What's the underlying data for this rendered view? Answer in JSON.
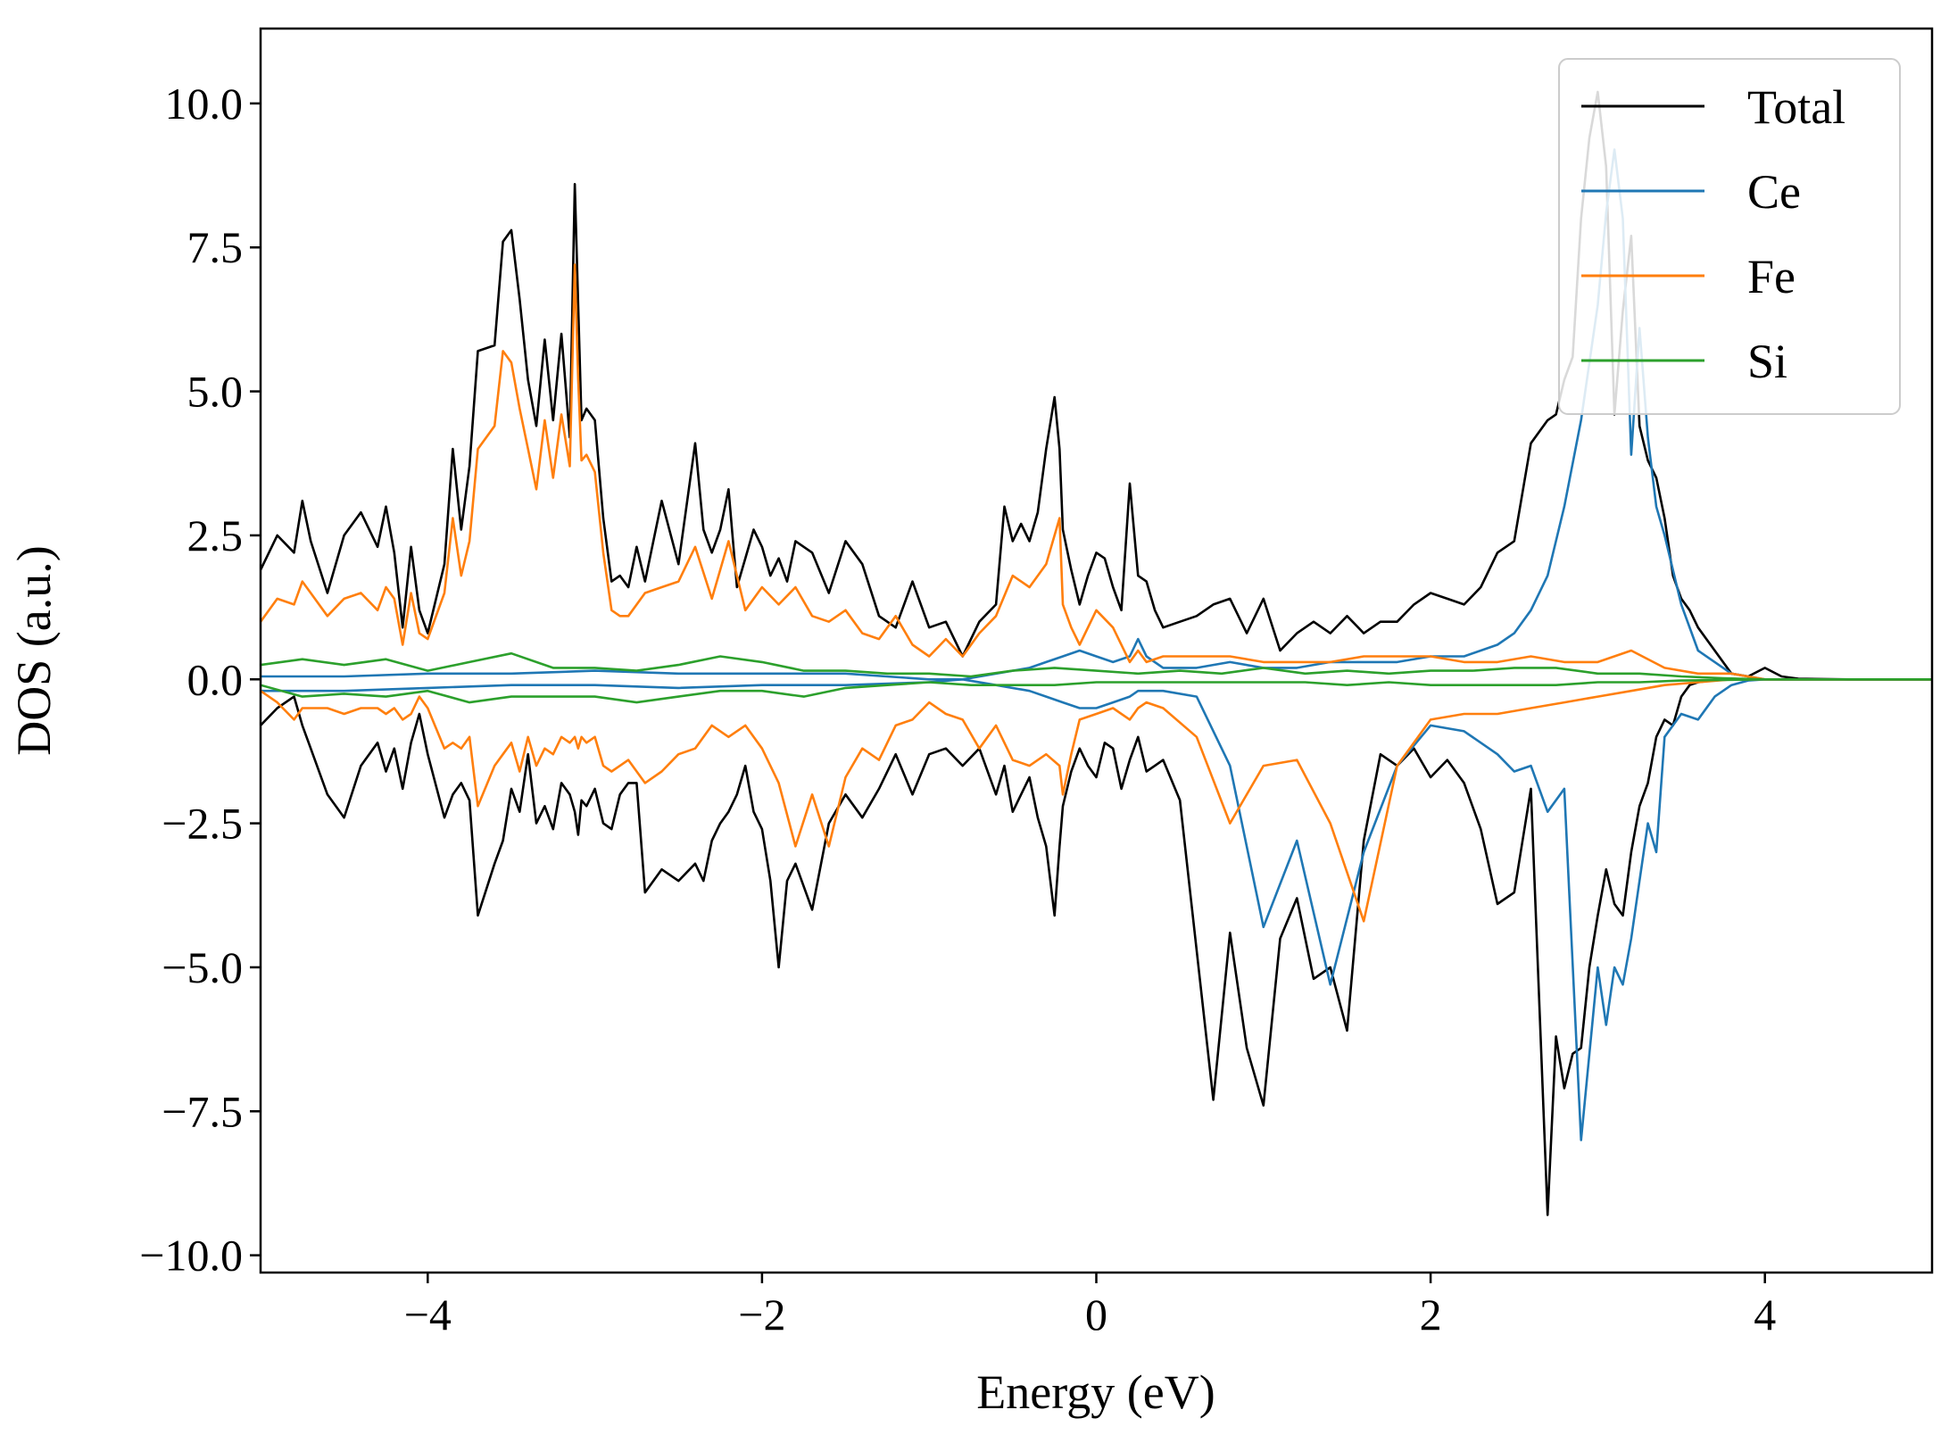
{
  "chart_data": {
    "type": "line",
    "title": "",
    "xlabel": "Energy (eV)",
    "ylabel": "DOS (a.u.)",
    "xlim": [
      -5,
      5
    ],
    "ylim": [
      -10.3,
      11.3
    ],
    "xticks": [
      -4,
      -2,
      0,
      2,
      4
    ],
    "xtick_labels": [
      "−4",
      "−2",
      "0",
      "2",
      "4"
    ],
    "yticks": [
      -10,
      -7.5,
      -5,
      -2.5,
      0,
      2.5,
      5,
      7.5,
      10
    ],
    "ytick_labels": [
      "−10.0",
      "−7.5",
      "−5.0",
      "−2.5",
      "0.0",
      "2.5",
      "5.0",
      "7.5",
      "10.0"
    ],
    "grid": false,
    "legend_position": "top-right",
    "series": [
      {
        "name": "Total",
        "color": "#000000",
        "spin_up": {
          "x": [
            -5.0,
            -4.9,
            -4.8,
            -4.75,
            -4.7,
            -4.6,
            -4.5,
            -4.4,
            -4.3,
            -4.25,
            -4.2,
            -4.15,
            -4.1,
            -4.05,
            -4.0,
            -3.9,
            -3.85,
            -3.8,
            -3.75,
            -3.7,
            -3.6,
            -3.55,
            -3.5,
            -3.45,
            -3.4,
            -3.35,
            -3.3,
            -3.25,
            -3.2,
            -3.15,
            -3.12,
            -3.1,
            -3.08,
            -3.05,
            -3.0,
            -2.95,
            -2.9,
            -2.85,
            -2.8,
            -2.75,
            -2.7,
            -2.6,
            -2.5,
            -2.4,
            -2.35,
            -2.3,
            -2.25,
            -2.2,
            -2.15,
            -2.1,
            -2.05,
            -2.0,
            -1.95,
            -1.9,
            -1.85,
            -1.8,
            -1.7,
            -1.6,
            -1.5,
            -1.4,
            -1.3,
            -1.2,
            -1.1,
            -1.0,
            -0.9,
            -0.8,
            -0.7,
            -0.6,
            -0.55,
            -0.5,
            -0.45,
            -0.4,
            -0.35,
            -0.3,
            -0.25,
            -0.22,
            -0.2,
            -0.15,
            -0.1,
            -0.05,
            0.0,
            0.05,
            0.1,
            0.15,
            0.2,
            0.25,
            0.3,
            0.35,
            0.4,
            0.5,
            0.6,
            0.7,
            0.8,
            0.9,
            1.0,
            1.1,
            1.2,
            1.3,
            1.4,
            1.5,
            1.6,
            1.7,
            1.8,
            1.9,
            2.0,
            2.1,
            2.2,
            2.3,
            2.4,
            2.5,
            2.6,
            2.7,
            2.75,
            2.8,
            2.85,
            2.9,
            2.95,
            3.0,
            3.05,
            3.1,
            3.15,
            3.2,
            3.25,
            3.3,
            3.35,
            3.4,
            3.45,
            3.5,
            3.55,
            3.6,
            3.7,
            3.8,
            3.9,
            4.0,
            4.1,
            4.2,
            4.5,
            5.0
          ],
          "y": [
            1.9,
            2.5,
            2.2,
            3.1,
            2.4,
            1.5,
            2.5,
            2.9,
            2.3,
            3.0,
            2.2,
            0.9,
            2.3,
            1.2,
            0.8,
            2.0,
            4.0,
            2.6,
            3.7,
            5.7,
            5.8,
            7.6,
            7.8,
            6.6,
            5.2,
            4.4,
            5.9,
            4.5,
            6.0,
            4.2,
            8.6,
            6.5,
            4.5,
            4.7,
            4.5,
            2.8,
            1.7,
            1.8,
            1.6,
            2.3,
            1.7,
            3.1,
            2.0,
            4.1,
            2.6,
            2.2,
            2.6,
            3.3,
            1.6,
            2.1,
            2.6,
            2.3,
            1.8,
            2.1,
            1.7,
            2.4,
            2.2,
            1.5,
            2.4,
            2.0,
            1.1,
            0.9,
            1.7,
            0.9,
            1.0,
            0.4,
            1.0,
            1.3,
            3.0,
            2.4,
            2.7,
            2.4,
            2.9,
            4.0,
            4.9,
            4.0,
            2.6,
            1.9,
            1.3,
            1.8,
            2.2,
            2.1,
            1.6,
            1.2,
            3.4,
            1.8,
            1.7,
            1.2,
            0.9,
            1.0,
            1.1,
            1.3,
            1.4,
            0.8,
            1.4,
            0.5,
            0.8,
            1.0,
            0.8,
            1.1,
            0.8,
            1.0,
            1.0,
            1.3,
            1.5,
            1.4,
            1.3,
            1.6,
            2.2,
            2.4,
            4.1,
            4.5,
            4.6,
            5.2,
            5.6,
            8.0,
            9.4,
            10.2,
            8.9,
            4.6,
            6.4,
            7.7,
            4.4,
            3.8,
            3.5,
            2.8,
            1.8,
            1.4,
            1.2,
            0.9,
            0.5,
            0.1,
            0.05,
            0.2,
            0.05,
            0.01,
            0.0,
            0.0
          ],
          "y_down": [
            -0.8,
            -0.5,
            -0.3,
            -0.8,
            -1.2,
            -2.0,
            -2.4,
            -1.5,
            -1.1,
            -1.6,
            -1.2,
            -1.9,
            -1.1,
            -0.6,
            -1.3,
            -2.4,
            -2.0,
            -1.8,
            -2.1,
            -4.1,
            -3.2,
            -2.8,
            -1.9,
            -2.3,
            -1.3,
            -2.5,
            -2.2,
            -2.6,
            -1.8,
            -2.0,
            -2.3,
            -2.7,
            -2.1,
            -2.2,
            -1.9,
            -2.5,
            -2.6,
            -2.0,
            -1.8,
            -1.8,
            -3.7,
            -3.3,
            -3.5,
            -3.2,
            -3.5,
            -2.8,
            -2.5,
            -2.3,
            -2.0,
            -1.5,
            -2.3,
            -2.6,
            -3.5,
            -5.0,
            -3.5,
            -3.2,
            -4.0,
            -2.5,
            -2.0,
            -2.4,
            -1.9,
            -1.3,
            -2.0,
            -1.3,
            -1.2,
            -1.5,
            -1.2,
            -2.0,
            -1.5,
            -2.3,
            -2.0,
            -1.7,
            -2.4,
            -2.9,
            -4.1,
            -2.9,
            -2.2,
            -1.6,
            -1.2,
            -1.5,
            -1.7,
            -1.1,
            -1.2,
            -1.9,
            -1.4,
            -1.0,
            -1.6,
            -1.5,
            -1.4,
            -2.1,
            -4.7,
            -7.3,
            -4.4,
            -6.4,
            -7.4,
            -4.5,
            -3.8,
            -5.2,
            -5.0,
            -6.1,
            -2.8,
            -1.3,
            -1.5,
            -1.2,
            -1.7,
            -1.4,
            -1.8,
            -2.6,
            -3.9,
            -3.7,
            -1.9,
            -9.3,
            -6.2,
            -7.1,
            -6.5,
            -6.4,
            -5.0,
            -4.1,
            -3.3,
            -3.9,
            -4.1,
            -3.0,
            -2.2,
            -1.8,
            -1.0,
            -0.7,
            -0.8,
            -0.3,
            -0.1,
            -0.05,
            -0.01,
            0.0,
            0.0,
            0.0,
            0.0,
            0.0,
            0.0,
            0.0
          ]
        }
      },
      {
        "name": "Ce",
        "color": "#1f77b4",
        "spin_up": {
          "x": [
            -5.0,
            -4.5,
            -4.0,
            -3.5,
            -3.0,
            -2.5,
            -2.0,
            -1.5,
            -1.0,
            -0.8,
            -0.6,
            -0.4,
            -0.3,
            -0.2,
            -0.1,
            0.0,
            0.1,
            0.2,
            0.25,
            0.3,
            0.4,
            0.6,
            0.8,
            1.0,
            1.2,
            1.4,
            1.6,
            1.8,
            2.0,
            2.2,
            2.4,
            2.5,
            2.6,
            2.7,
            2.8,
            2.9,
            3.0,
            3.05,
            3.1,
            3.15,
            3.2,
            3.25,
            3.3,
            3.35,
            3.4,
            3.5,
            3.6,
            3.7,
            3.8,
            3.9,
            4.0,
            4.5,
            5.0
          ],
          "y": [
            0.05,
            0.05,
            0.1,
            0.1,
            0.15,
            0.1,
            0.1,
            0.1,
            0.0,
            0.0,
            0.1,
            0.2,
            0.3,
            0.4,
            0.5,
            0.4,
            0.3,
            0.4,
            0.7,
            0.4,
            0.2,
            0.2,
            0.3,
            0.2,
            0.2,
            0.3,
            0.3,
            0.3,
            0.4,
            0.4,
            0.6,
            0.8,
            1.2,
            1.8,
            3.0,
            4.5,
            6.5,
            8.1,
            9.2,
            8.0,
            3.9,
            6.1,
            4.2,
            3.0,
            2.5,
            1.3,
            0.5,
            0.3,
            0.1,
            0.05,
            0.0,
            0.0,
            0.0
          ],
          "y_down": [
            -0.2,
            -0.2,
            -0.15,
            -0.1,
            -0.1,
            -0.15,
            -0.1,
            -0.1,
            -0.05,
            0.0,
            -0.1,
            -0.2,
            -0.3,
            -0.4,
            -0.5,
            -0.5,
            -0.4,
            -0.3,
            -0.2,
            -0.2,
            -0.2,
            -0.3,
            -1.5,
            -4.3,
            -2.8,
            -5.3,
            -3.0,
            -1.5,
            -0.8,
            -0.9,
            -1.3,
            -1.6,
            -1.5,
            -2.3,
            -1.9,
            -8.0,
            -5.0,
            -6.0,
            -5.0,
            -5.3,
            -4.5,
            -3.5,
            -2.5,
            -3.0,
            -1.0,
            -0.6,
            -0.7,
            -0.3,
            -0.1,
            -0.02,
            0.0,
            0.0,
            0.0
          ]
        }
      },
      {
        "name": "Fe",
        "color": "#ff7f0e",
        "spin_up": {
          "x": [
            -5.0,
            -4.9,
            -4.8,
            -4.75,
            -4.7,
            -4.6,
            -4.5,
            -4.4,
            -4.3,
            -4.25,
            -4.2,
            -4.15,
            -4.1,
            -4.05,
            -4.0,
            -3.9,
            -3.85,
            -3.8,
            -3.75,
            -3.7,
            -3.6,
            -3.55,
            -3.5,
            -3.45,
            -3.4,
            -3.35,
            -3.3,
            -3.25,
            -3.2,
            -3.15,
            -3.12,
            -3.1,
            -3.08,
            -3.05,
            -3.0,
            -2.95,
            -2.9,
            -2.85,
            -2.8,
            -2.7,
            -2.6,
            -2.5,
            -2.4,
            -2.3,
            -2.2,
            -2.1,
            -2.0,
            -1.9,
            -1.8,
            -1.7,
            -1.6,
            -1.5,
            -1.4,
            -1.3,
            -1.2,
            -1.1,
            -1.0,
            -0.9,
            -0.8,
            -0.7,
            -0.6,
            -0.5,
            -0.4,
            -0.3,
            -0.22,
            -0.2,
            -0.15,
            -0.1,
            0.0,
            0.1,
            0.2,
            0.25,
            0.3,
            0.4,
            0.6,
            0.8,
            1.0,
            1.2,
            1.4,
            1.6,
            1.8,
            2.0,
            2.2,
            2.4,
            2.6,
            2.8,
            3.0,
            3.2,
            3.4,
            3.6,
            3.8,
            4.0,
            4.5,
            5.0
          ],
          "y": [
            1.0,
            1.4,
            1.3,
            1.7,
            1.5,
            1.1,
            1.4,
            1.5,
            1.2,
            1.6,
            1.4,
            0.6,
            1.5,
            0.8,
            0.7,
            1.5,
            2.8,
            1.8,
            2.4,
            4.0,
            4.4,
            5.7,
            5.5,
            4.7,
            4.0,
            3.3,
            4.5,
            3.5,
            4.6,
            3.7,
            7.2,
            5.2,
            3.8,
            3.9,
            3.6,
            2.2,
            1.2,
            1.1,
            1.1,
            1.5,
            1.6,
            1.7,
            2.3,
            1.4,
            2.4,
            1.2,
            1.6,
            1.3,
            1.6,
            1.1,
            1.0,
            1.2,
            0.8,
            0.7,
            1.1,
            0.6,
            0.4,
            0.7,
            0.4,
            0.8,
            1.1,
            1.8,
            1.6,
            2.0,
            2.8,
            1.3,
            0.9,
            0.6,
            1.2,
            0.9,
            0.3,
            0.5,
            0.3,
            0.4,
            0.4,
            0.4,
            0.3,
            0.3,
            0.3,
            0.4,
            0.4,
            0.4,
            0.3,
            0.3,
            0.4,
            0.3,
            0.3,
            0.5,
            0.2,
            0.1,
            0.1,
            0.0,
            0.0,
            0.0
          ],
          "y_down": [
            -0.2,
            -0.4,
            -0.7,
            -0.5,
            -0.5,
            -0.5,
            -0.6,
            -0.5,
            -0.5,
            -0.6,
            -0.5,
            -0.7,
            -0.6,
            -0.3,
            -0.5,
            -1.2,
            -1.1,
            -1.2,
            -1.0,
            -2.2,
            -1.5,
            -1.3,
            -1.1,
            -1.6,
            -1.0,
            -1.5,
            -1.2,
            -1.3,
            -1.0,
            -1.1,
            -1.0,
            -1.2,
            -1.0,
            -1.1,
            -1.0,
            -1.5,
            -1.6,
            -1.5,
            -1.4,
            -1.8,
            -1.6,
            -1.3,
            -1.2,
            -0.8,
            -1.0,
            -0.8,
            -1.2,
            -1.8,
            -2.9,
            -2.0,
            -2.9,
            -1.7,
            -1.2,
            -1.4,
            -0.8,
            -0.7,
            -0.4,
            -0.6,
            -0.7,
            -1.2,
            -0.8,
            -1.4,
            -1.5,
            -1.3,
            -1.5,
            -2.0,
            -1.3,
            -0.7,
            -0.6,
            -0.5,
            -0.7,
            -0.5,
            -0.4,
            -0.5,
            -1.0,
            -2.5,
            -1.5,
            -1.4,
            -2.5,
            -4.2,
            -1.5,
            -0.7,
            -0.6,
            -0.6,
            -0.5,
            -0.4,
            -0.3,
            -0.2,
            -0.1,
            -0.05,
            0.0,
            0.0,
            0.0,
            0.0
          ]
        }
      },
      {
        "name": "Si",
        "color": "#2ca02c",
        "spin_up": {
          "x": [
            -5.0,
            -4.75,
            -4.5,
            -4.25,
            -4.0,
            -3.75,
            -3.5,
            -3.25,
            -3.0,
            -2.75,
            -2.5,
            -2.25,
            -2.0,
            -1.75,
            -1.5,
            -1.25,
            -1.0,
            -0.75,
            -0.5,
            -0.25,
            0.0,
            0.25,
            0.5,
            0.75,
            1.0,
            1.25,
            1.5,
            1.75,
            2.0,
            2.25,
            2.5,
            2.75,
            3.0,
            3.25,
            3.5,
            3.75,
            4.0,
            4.5,
            5.0
          ],
          "y": [
            0.25,
            0.35,
            0.25,
            0.35,
            0.15,
            0.3,
            0.45,
            0.2,
            0.2,
            0.15,
            0.25,
            0.4,
            0.3,
            0.15,
            0.15,
            0.1,
            0.1,
            0.05,
            0.15,
            0.2,
            0.15,
            0.1,
            0.15,
            0.1,
            0.2,
            0.1,
            0.15,
            0.1,
            0.15,
            0.15,
            0.2,
            0.2,
            0.1,
            0.1,
            0.05,
            0.02,
            0.0,
            0.0,
            0.0
          ],
          "y_down": [
            -0.1,
            -0.3,
            -0.25,
            -0.3,
            -0.2,
            -0.4,
            -0.3,
            -0.3,
            -0.3,
            -0.4,
            -0.3,
            -0.2,
            -0.2,
            -0.3,
            -0.15,
            -0.1,
            -0.05,
            -0.1,
            -0.1,
            -0.1,
            -0.05,
            -0.05,
            -0.05,
            -0.05,
            -0.05,
            -0.05,
            -0.1,
            -0.05,
            -0.1,
            -0.1,
            -0.1,
            -0.1,
            -0.05,
            -0.05,
            -0.02,
            -0.01,
            0.0,
            0.0,
            0.0
          ]
        }
      }
    ]
  }
}
